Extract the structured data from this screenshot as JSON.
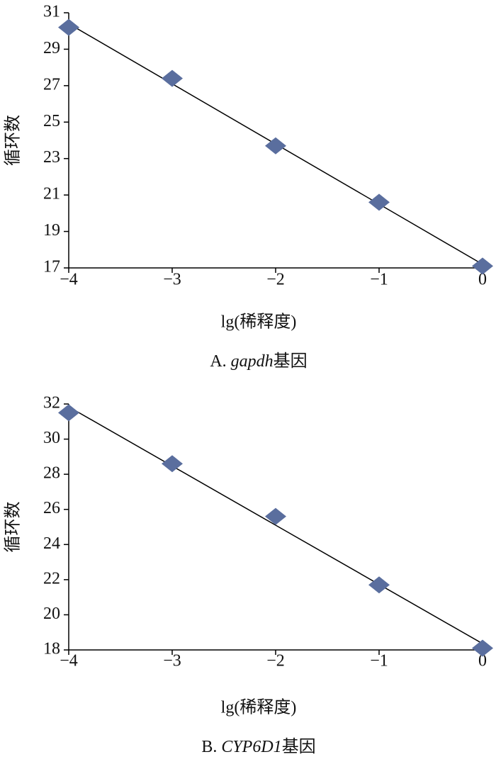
{
  "chart_data": [
    {
      "type": "scatter",
      "trendline": true,
      "color": "#5a6e9e",
      "x_label": "lg(稀释度)",
      "y_label": "循环数",
      "caption": [
        "A. ",
        "gapdh",
        "基因"
      ],
      "x": [
        -4,
        -3,
        -2,
        -1,
        0
      ],
      "values": [
        30.2,
        27.4,
        23.7,
        20.6,
        17.1
      ],
      "xlim": [
        -4,
        0
      ],
      "xticks": [
        {
          "value": -4,
          "label": "−4"
        },
        {
          "value": -3,
          "label": "−3"
        },
        {
          "value": -2,
          "label": "−2"
        },
        {
          "value": -1,
          "label": "−1"
        },
        0
      ],
      "ylim": [
        17,
        31
      ],
      "yticks": [
        17,
        19,
        21,
        23,
        25,
        27,
        29,
        31
      ]
    },
    {
      "type": "scatter",
      "trendline": true,
      "color": "#5a6e9e",
      "x_label": "lg(稀释度)",
      "y_label": "循环数",
      "caption": [
        "B. ",
        "CYP6D1",
        "基因"
      ],
      "x": [
        -4,
        -3,
        -2,
        -1,
        0
      ],
      "values": [
        31.5,
        28.6,
        25.6,
        21.7,
        18.1
      ],
      "xlim": [
        -4,
        0
      ],
      "xticks": [
        {
          "value": -4,
          "label": "−4"
        },
        {
          "value": -3,
          "label": "−3"
        },
        {
          "value": -2,
          "label": "−2"
        },
        {
          "value": -1,
          "label": "−1"
        },
        0
      ],
      "ylim": [
        18,
        32
      ],
      "yticks": [
        18,
        20,
        22,
        24,
        26,
        28,
        30,
        32
      ]
    }
  ]
}
